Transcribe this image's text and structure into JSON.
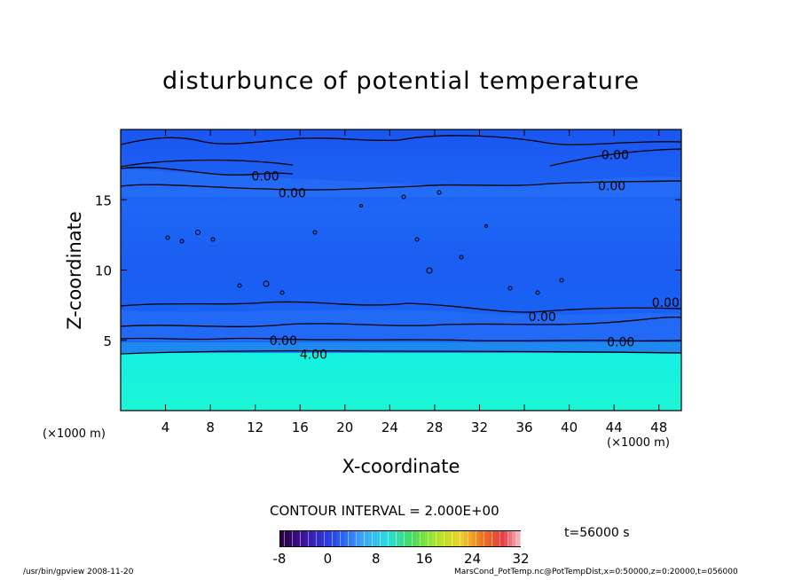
{
  "chart_data": {
    "type": "heatmap",
    "title": "disturbunce of potential temperature",
    "xlabel": "X-coordinate",
    "ylabel": "Z-coordinate",
    "x_unit": "(×1000 m)",
    "y_unit": "(×1000 m)",
    "xlim": [
      0,
      50
    ],
    "ylim": [
      0,
      20
    ],
    "x_ticks": [
      4,
      8,
      12,
      16,
      20,
      24,
      28,
      32,
      36,
      40,
      44,
      48
    ],
    "y_ticks": [
      5,
      10,
      15
    ],
    "contour_labels": [
      {
        "text": "0.00",
        "x": 12.9,
        "y": 16.7
      },
      {
        "text": "0.00",
        "x": 15.3,
        "y": 15.5
      },
      {
        "text": "0.00",
        "x": 44.1,
        "y": 18.2
      },
      {
        "text": "0.00",
        "x": 43.8,
        "y": 16.0
      },
      {
        "text": "0.00",
        "x": 48.6,
        "y": 7.7
      },
      {
        "text": "0.00",
        "x": 37.6,
        "y": 6.7
      },
      {
        "text": "0.00",
        "x": 14.5,
        "y": 5.0
      },
      {
        "text": "0.00",
        "x": 44.6,
        "y": 4.9
      },
      {
        "text": "4.00",
        "x": 17.2,
        "y": 4.0
      }
    ],
    "contour_interval": "CONTOUR INTERVAL = 2.000E+00",
    "colorbar": {
      "ticks": [
        "-8",
        "0",
        "8",
        "16",
        "24",
        "32"
      ],
      "range": [
        -8,
        32
      ]
    },
    "time": "t=56000 s"
  },
  "colors": {
    "upper_field": "#1a5cf5",
    "lower_field": "#18f5d8"
  },
  "footer": {
    "left": "/usr/bin/gpview  2008-11-20",
    "right": "MarsCond_PotTemp.nc@PotTempDist,x=0:50000,z=0:20000,t=056000"
  }
}
